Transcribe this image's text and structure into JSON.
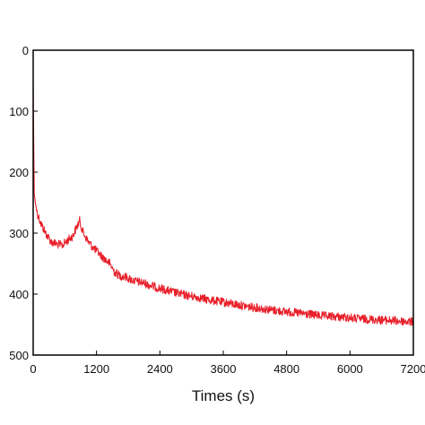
{
  "chart_data": {
    "type": "line",
    "title": "",
    "xlabel": "Times (s)",
    "ylabel": "",
    "xlim": [
      0,
      7200
    ],
    "ylim": [
      0,
      500
    ],
    "y_inverted": true,
    "x_ticks": [
      0,
      1200,
      2400,
      3600,
      4800,
      6000,
      7200
    ],
    "x_tick_labels": [
      "0",
      "1200",
      "2400",
      "3600",
      "4800",
      "6000",
      "7200"
    ],
    "y_ticks": [
      0,
      100,
      200,
      300,
      400,
      500
    ],
    "y_tick_labels": [
      "0",
      "100",
      "200",
      "300",
      "400",
      "500"
    ],
    "grid": false,
    "legend": "none",
    "series_color": "#e8202a",
    "series": [
      {
        "x": [
          0,
          10,
          20,
          40,
          80,
          150,
          250,
          350,
          450,
          550,
          650,
          750,
          850,
          880,
          950,
          1050,
          1150,
          1300,
          1450,
          1550,
          1650,
          1750,
          1900,
          2100,
          2300,
          2500,
          2700,
          2900,
          3100,
          3300,
          3500,
          3700,
          3900,
          4100,
          4300,
          4500,
          4700,
          4900,
          5100,
          5300,
          5500,
          5700,
          5900,
          6100,
          6300,
          6500,
          6700,
          6900,
          7100,
          7200
        ],
        "y": [
          60,
          150,
          235,
          250,
          268,
          285,
          302,
          315,
          318,
          320,
          312,
          305,
          285,
          280,
          300,
          315,
          325,
          338,
          350,
          365,
          370,
          372,
          378,
          382,
          388,
          393,
          398,
          402,
          405,
          409,
          412,
          415,
          418,
          421,
          423,
          426,
          428,
          430,
          432,
          434,
          436,
          437,
          438,
          440,
          441,
          442,
          443,
          444,
          445,
          446
        ]
      }
    ]
  }
}
